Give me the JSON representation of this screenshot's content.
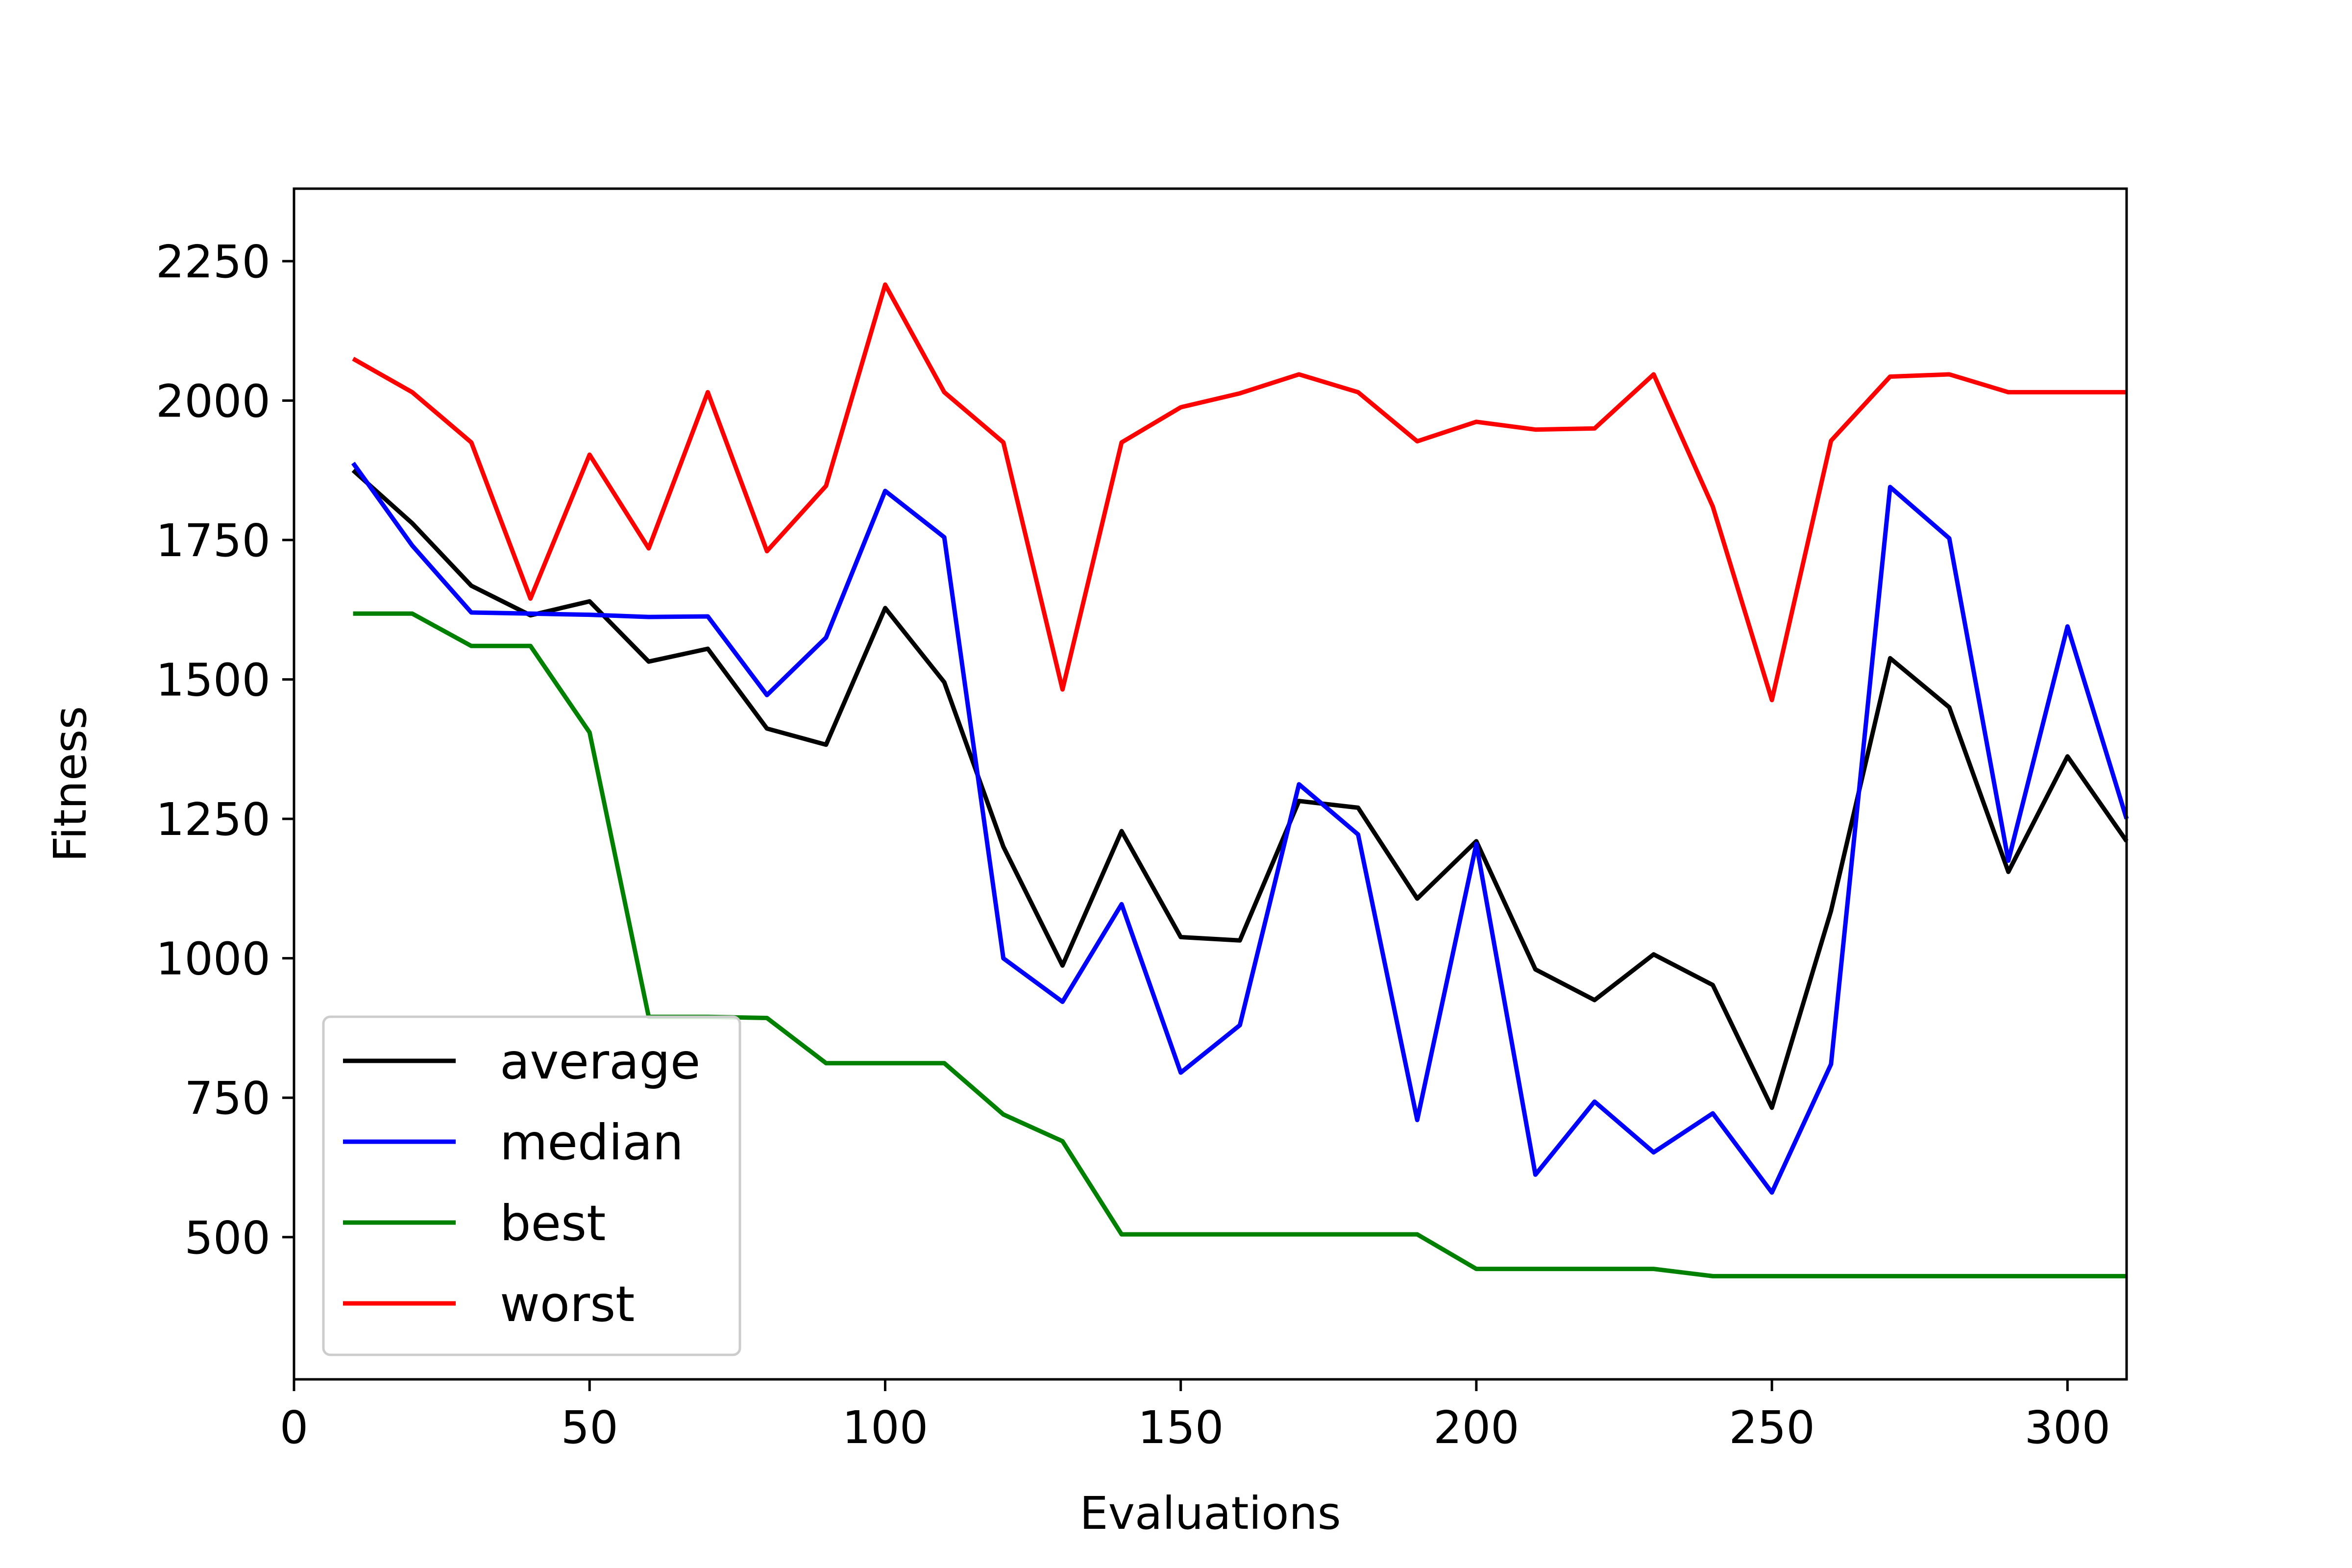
{
  "chart_data": {
    "type": "line",
    "title": "",
    "xlabel": "Evaluations",
    "ylabel": "Fitness",
    "xlim": [
      0,
      310
    ],
    "ylim": [
      245,
      2380
    ],
    "xticks": [
      0,
      50,
      100,
      150,
      200,
      250,
      300
    ],
    "yticks": [
      500,
      750,
      1000,
      1250,
      1500,
      1750,
      2000,
      2250
    ],
    "grid": false,
    "legend_position": "lower-left",
    "x": [
      10,
      20,
      30,
      40,
      50,
      60,
      70,
      80,
      90,
      100,
      110,
      120,
      130,
      140,
      150,
      160,
      170,
      180,
      190,
      200,
      210,
      220,
      230,
      240,
      250,
      260,
      270,
      280,
      290,
      300,
      310
    ],
    "series": [
      {
        "name": "average",
        "color": "#000000",
        "values": [
          1875,
          1780,
          1668,
          1615,
          1640,
          1532,
          1555,
          1412,
          1383,
          1628,
          1495,
          1200,
          987,
          1228,
          1038,
          1032,
          1282,
          1270,
          1107,
          1210,
          980,
          925,
          1007,
          952,
          732,
          1085,
          1538,
          1450,
          1155,
          1362,
          1210
        ]
      },
      {
        "name": "median",
        "color": "#0000ff",
        "values": [
          1888,
          1740,
          1620,
          1618,
          1616,
          1612,
          1613,
          1472,
          1575,
          1838,
          1755,
          1000,
          922,
          1097,
          795,
          880,
          1312,
          1222,
          710,
          1205,
          612,
          743,
          652,
          722,
          580,
          810,
          1845,
          1753,
          1175,
          1595,
          1250
        ]
      },
      {
        "name": "best",
        "color": "#008000",
        "values": [
          1618,
          1618,
          1560,
          1560,
          1405,
          895,
          895,
          893,
          812,
          812,
          812,
          720,
          672,
          505,
          505,
          505,
          505,
          505,
          505,
          443,
          443,
          443,
          443,
          430,
          430,
          430,
          430,
          430,
          430,
          430,
          430
        ]
      },
      {
        "name": "worst",
        "color": "#ff0000",
        "values": [
          2075,
          2015,
          1925,
          1645,
          1903,
          1735,
          2015,
          1730,
          1847,
          2208,
          2015,
          1925,
          1482,
          1925,
          1988,
          2013,
          2047,
          2015,
          1927,
          1962,
          1948,
          1950,
          2047,
          1810,
          1463,
          1928,
          2043,
          2047,
          2015,
          2015,
          2015
        ]
      }
    ]
  }
}
